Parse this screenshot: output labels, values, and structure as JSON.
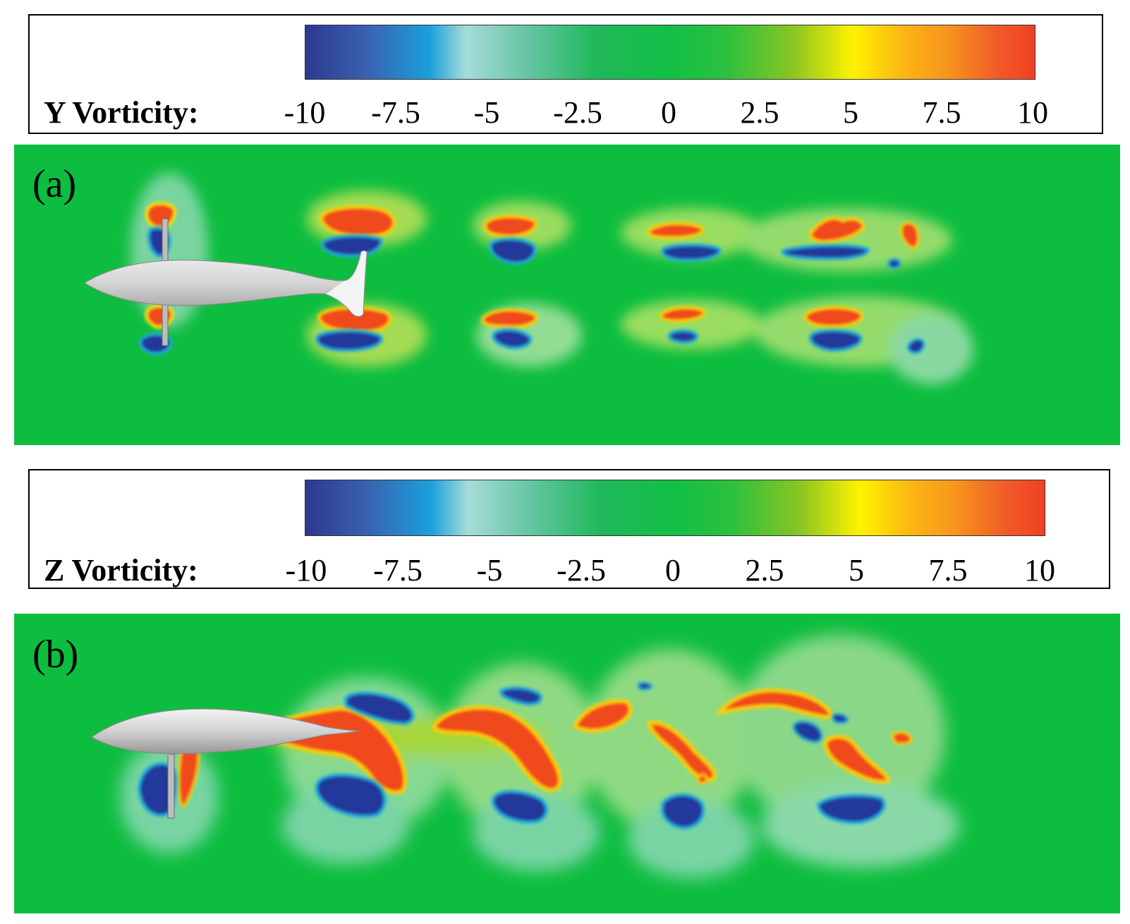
{
  "legend_y": {
    "title": "Y Vorticity:",
    "ticks": [
      "-10",
      "-7.5",
      "-5",
      "-2.5",
      "0",
      "2.5",
      "5",
      "7.5",
      "10"
    ]
  },
  "legend_z": {
    "title": "Z Vorticity:",
    "ticks": [
      "-10",
      "-7.5",
      "-5",
      "-2.5",
      "0",
      "2.5",
      "5",
      "7.5",
      "10"
    ]
  },
  "panel_a": {
    "label": "(a)"
  },
  "panel_b": {
    "label": "(b)"
  },
  "colors": {
    "background_green": "#0dbd3f",
    "positive_red": "#f04a1f",
    "negative_blue": "#23399a",
    "body_gray": "#d6d6d6"
  }
}
